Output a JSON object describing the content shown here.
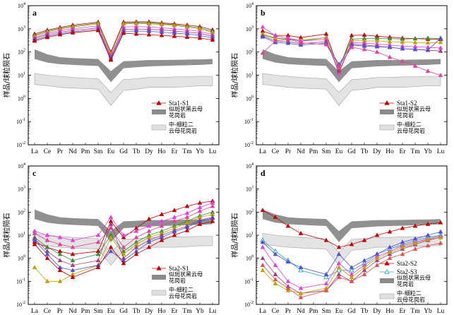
{
  "chart_data": [
    {
      "panel": "a",
      "type": "line",
      "categories": [
        "La",
        "Ce",
        "Pr",
        "Nd",
        "Pm",
        "Sm",
        "Eu",
        "Gd",
        "Tb",
        "Dy",
        "Ho",
        "Er",
        "Tm",
        "Yb",
        "Lu"
      ],
      "ylabel": "样品/球粒陨石",
      "yscale": "log",
      "ylim": [
        0.01,
        10000
      ],
      "series": [
        {
          "name": "Sta1-S1",
          "color": "#c00000",
          "values": [
            600,
            880,
            1150,
            1450,
            null,
            1950,
            100,
            1950,
            2000,
            2000,
            1800,
            1650,
            1450,
            1250,
            900
          ]
        },
        {
          "color": "#3a8a3a",
          "values": [
            520,
            800,
            1050,
            1300,
            null,
            1800,
            90,
            1750,
            1850,
            1800,
            1650,
            1500,
            1300,
            1100,
            780
          ]
        },
        {
          "color": "#c0a000",
          "values": [
            480,
            740,
            980,
            1200,
            null,
            1650,
            85,
            1650,
            1700,
            1650,
            1550,
            1400,
            1200,
            1000,
            700
          ]
        },
        {
          "color": "#e040e0",
          "values": [
            420,
            640,
            850,
            1000,
            null,
            1350,
            70,
            1200,
            1250,
            1200,
            1100,
            1000,
            900,
            780,
            560
          ]
        },
        {
          "color": "#a04080",
          "values": [
            380,
            560,
            720,
            850,
            null,
            1100,
            60,
            950,
            980,
            950,
            900,
            800,
            720,
            640,
            480
          ]
        },
        {
          "color": "#5050d0",
          "values": [
            330,
            480,
            620,
            740,
            null,
            950,
            50,
            780,
            800,
            780,
            720,
            650,
            600,
            520,
            400
          ]
        },
        {
          "color": "#c00000",
          "values": [
            300,
            430,
            560,
            680,
            null,
            850,
            45,
            650,
            600,
            560,
            520,
            480,
            440,
            400,
            330
          ]
        }
      ],
      "legend": [
        {
          "label": "Sta1-S1",
          "kind": "line-marker"
        },
        {
          "label": "似斑状黑云母花岗岩",
          "kind": "band-dark"
        },
        {
          "label": "中-细粒二云母花岗岩",
          "kind": "band-light"
        }
      ]
    },
    {
      "panel": "b",
      "type": "line",
      "categories": [
        "La",
        "Ce",
        "Pr",
        "Nd",
        "Pm",
        "Sm",
        "Eu",
        "Gd",
        "Tb",
        "Dy",
        "Ho",
        "Er",
        "Tm",
        "Yb",
        "Lu"
      ],
      "ylabel": "样品/球粒陨石",
      "yscale": "log",
      "ylim": [
        0.01,
        10000
      ],
      "series": [
        {
          "name": "Sta1-S2",
          "color": "#c00000",
          "values": [
            800,
            520,
            520,
            420,
            null,
            600,
            18,
            520,
            540,
            480,
            440,
            400,
            380,
            360,
            350
          ]
        },
        {
          "color": "#3a8a3a",
          "values": [
            550,
            380,
            360,
            300,
            null,
            420,
            22,
            360,
            380,
            380,
            380,
            360,
            380,
            400,
            380
          ]
        },
        {
          "color": "#c0a000",
          "values": [
            600,
            400,
            380,
            320,
            null,
            420,
            20,
            320,
            300,
            300,
            280,
            270,
            260,
            250,
            260
          ]
        },
        {
          "color": "#e040e0",
          "values": [
            1200,
            500,
            400,
            300,
            null,
            350,
            12,
            260,
            240,
            220,
            200,
            180,
            170,
            160,
            150
          ]
        },
        {
          "color": "#a04080",
          "values": [
            500,
            300,
            280,
            230,
            null,
            280,
            15,
            220,
            200,
            180,
            160,
            140,
            130,
            120,
            110
          ]
        },
        {
          "color": "#5050d0",
          "values": [
            450,
            260,
            240,
            200,
            null,
            240,
            30,
            200,
            180,
            170,
            160,
            140,
            130,
            120,
            400
          ]
        },
        {
          "color": "#e040a0",
          "values": [
            90,
            300,
            360,
            250,
            null,
            210,
            25,
            160,
            130,
            100,
            60,
            40,
            25,
            15,
            10
          ]
        }
      ],
      "legend": [
        {
          "label": "Sta1-S2",
          "kind": "line-marker"
        },
        {
          "label": "似斑状黑云母花岗岩",
          "kind": "band-dark"
        },
        {
          "label": "中-细粒二云母花岗岩",
          "kind": "band-light"
        }
      ]
    },
    {
      "panel": "c",
      "type": "line",
      "categories": [
        "La",
        "Ce",
        "Pr",
        "Nd",
        "Pm",
        "Sm",
        "Eu",
        "Gd",
        "Tb",
        "Dy",
        "Ho",
        "Er",
        "Tm",
        "Yb",
        "Lu"
      ],
      "ylabel": "样品/球粒陨石",
      "yscale": "log",
      "ylim": [
        0.01,
        10000
      ],
      "series": [
        {
          "name": "Sta2-S1",
          "color": "#c00000",
          "values": [
            5,
            3,
            2,
            1.5,
            null,
            2,
            40,
            8,
            20,
            50,
            80,
            120,
            180,
            250,
            300
          ]
        },
        {
          "color": "#e040e0",
          "values": [
            15,
            10,
            8,
            6,
            null,
            10,
            60,
            10,
            15,
            25,
            40,
            60,
            90,
            160,
            250
          ]
        },
        {
          "color": "#e040a0",
          "values": [
            12,
            6,
            4,
            3,
            null,
            5,
            20,
            3,
            8,
            15,
            25,
            40,
            60,
            110,
            180
          ]
        },
        {
          "color": "#3a8a3a",
          "values": [
            8,
            3,
            1.5,
            0.8,
            null,
            1.5,
            10,
            2,
            5,
            10,
            15,
            25,
            40,
            70,
            100
          ]
        },
        {
          "color": "#c0a000",
          "values": [
            0.4,
            0.1,
            0.1,
            0.2,
            null,
            0.5,
            8,
            1.5,
            4,
            8,
            12,
            20,
            35,
            60,
            80
          ]
        },
        {
          "color": "#a04080",
          "values": [
            7,
            2,
            0.8,
            0.5,
            null,
            0.8,
            30,
            1,
            3,
            6,
            10,
            16,
            25,
            45,
            60
          ]
        },
        {
          "color": "#5050d0",
          "values": [
            6,
            1.5,
            0.4,
            0.3,
            null,
            0.5,
            2,
            0.8,
            2,
            5,
            8,
            14,
            22,
            40,
            55
          ]
        },
        {
          "color": "#c00000",
          "values": [
            4,
            1,
            0.3,
            0.15,
            null,
            0.4,
            3,
            0.6,
            1.5,
            3,
            6,
            10,
            16,
            30,
            40
          ]
        }
      ],
      "legend": [
        {
          "label": "Sta2-S1",
          "kind": "line-marker"
        },
        {
          "label": "似斑状黑云母花岗岩",
          "kind": "band-dark"
        },
        {
          "label": "中-细粒二云母花岗岩",
          "kind": "band-light"
        }
      ]
    },
    {
      "panel": "d",
      "type": "line",
      "categories": [
        "La",
        "Ce",
        "Pr",
        "Nd",
        "Pm",
        "Sm",
        "Eu",
        "Gd",
        "Tb",
        "Dy",
        "Ho",
        "Er",
        "Tm",
        "Yb",
        "Lu"
      ],
      "ylabel": "样品/球粒陨石",
      "yscale": "log",
      "ylim": [
        0.01,
        10000
      ],
      "series": [
        {
          "name": "Sta2-S2",
          "color": "#c00000",
          "values": [
            120,
            60,
            25,
            12,
            null,
            6,
            3,
            4,
            6,
            10,
            14,
            20,
            25,
            30,
            35
          ]
        },
        {
          "name": "Sta2-S3",
          "color": "#20a0c0",
          "values": [
            6,
            2,
            0.8,
            0.3,
            null,
            0.15,
            0.3,
            0.3,
            0.6,
            1.5,
            2.5,
            4,
            6,
            8,
            10
          ]
        },
        {
          "color": "#5050d0",
          "values": [
            5,
            1.5,
            0.7,
            0.4,
            null,
            0.2,
            1.5,
            0.4,
            0.8,
            1.5,
            3,
            5,
            7,
            10,
            14
          ]
        },
        {
          "color": "#e040e0",
          "values": [
            3,
            0.5,
            0.1,
            0.05,
            null,
            0.08,
            0.6,
            0.2,
            0.5,
            1.2,
            2,
            3.5,
            5,
            7,
            9
          ]
        },
        {
          "color": "#a04080",
          "values": [
            1,
            0.2,
            0.06,
            0.03,
            null,
            0.04,
            0.2,
            0.1,
            0.3,
            0.8,
            1.5,
            2.5,
            4,
            6,
            8
          ]
        },
        {
          "color": "#c0a000",
          "values": [
            0.3,
            0.08,
            0.04,
            0.03,
            null,
            0.05,
            0.4,
            0.15,
            0.4,
            1,
            1.8,
            3,
            4.5,
            6.5,
            8
          ]
        },
        {
          "color": "#e05050",
          "values": [
            0.5,
            0.12,
            0.05,
            0.02,
            null,
            0.04,
            0.15,
            0.1,
            0.2,
            0.5,
            1,
            1.5,
            2.5,
            3.5,
            4.5
          ]
        }
      ],
      "legend": [
        {
          "label": "Sta2-S2",
          "kind": "line-marker"
        },
        {
          "label": "Sta2-S3",
          "kind": "line-marker-open"
        },
        {
          "label": "似斑状黑云母花岗岩",
          "kind": "band-dark"
        },
        {
          "label": "中-细粒二云母花岗岩",
          "kind": "band-light"
        }
      ]
    }
  ],
  "bands": {
    "dark": {
      "color": "#8a8a8a",
      "upper": [
        130,
        80,
        60,
        55,
        null,
        50,
        15,
        40,
        42,
        45,
        45,
        46,
        47,
        48,
        50
      ],
      "lower": [
        50,
        35,
        30,
        28,
        null,
        25,
        5,
        20,
        22,
        24,
        25,
        26,
        27,
        28,
        30
      ]
    },
    "light": {
      "color": "#e0e0e0",
      "upper": [
        12,
        10,
        9,
        8,
        null,
        7,
        1.8,
        6.5,
        7,
        8,
        8,
        8.5,
        8.5,
        9,
        9
      ],
      "lower": [
        4,
        3.5,
        3,
        2.8,
        null,
        2.5,
        0.5,
        2.2,
        2.5,
        3,
        3,
        3,
        3.2,
        3.5,
        3.5
      ]
    }
  },
  "ytick_exponents": [
    -2,
    -1,
    0,
    1,
    2,
    3,
    4
  ]
}
